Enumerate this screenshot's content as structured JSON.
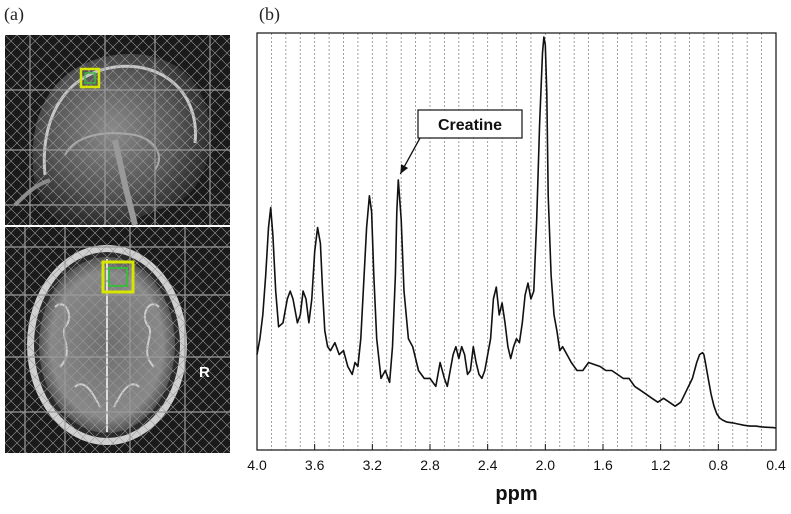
{
  "panels": {
    "a_label": "(a)",
    "b_label": "(b)"
  },
  "mri": {
    "orientation_label": "R",
    "grid_color": "#9a9a9a",
    "voxel_outer_color": "#d8e600",
    "voxel_inner_color": "#3fb83f"
  },
  "chart_data": {
    "type": "line",
    "title": "",
    "xlabel": "ppm",
    "ylabel": "",
    "xlim": [
      4.0,
      0.4
    ],
    "x_reversed": true,
    "x_ticks": [
      4.0,
      3.6,
      3.2,
      2.8,
      2.4,
      2.0,
      1.6,
      1.2,
      0.8,
      0.4
    ],
    "x_tick_labels": [
      "4.0",
      "3.6",
      "3.2",
      "2.8",
      "2.4",
      "2.0",
      "1.6",
      "1.2",
      "0.8",
      "0.4"
    ],
    "ylim": [
      0,
      1
    ],
    "grid": "vertical-dotted",
    "annotations": [
      {
        "text": "Creatine",
        "x": 3.02,
        "y": 0.64
      }
    ],
    "series": [
      {
        "color": "#111111",
        "x": [
          4.0,
          3.98,
          3.96,
          3.94,
          3.92,
          3.905,
          3.89,
          3.87,
          3.85,
          3.82,
          3.79,
          3.77,
          3.75,
          3.72,
          3.7,
          3.68,
          3.66,
          3.64,
          3.62,
          3.6,
          3.58,
          3.56,
          3.545,
          3.53,
          3.51,
          3.49,
          3.46,
          3.43,
          3.4,
          3.37,
          3.34,
          3.32,
          3.3,
          3.28,
          3.26,
          3.24,
          3.22,
          3.205,
          3.19,
          3.17,
          3.14,
          3.11,
          3.08,
          3.06,
          3.04,
          3.03,
          3.02,
          3.0,
          2.98,
          2.95,
          2.92,
          2.88,
          2.84,
          2.8,
          2.76,
          2.73,
          2.7,
          2.68,
          2.66,
          2.64,
          2.62,
          2.6,
          2.58,
          2.56,
          2.54,
          2.52,
          2.5,
          2.48,
          2.46,
          2.44,
          2.42,
          2.4,
          2.38,
          2.36,
          2.34,
          2.32,
          2.3,
          2.28,
          2.26,
          2.24,
          2.22,
          2.2,
          2.18,
          2.16,
          2.14,
          2.12,
          2.1,
          2.08,
          2.06,
          2.04,
          2.02,
          2.01,
          2.0,
          1.99,
          1.98,
          1.96,
          1.94,
          1.92,
          1.9,
          1.88,
          1.85,
          1.82,
          1.78,
          1.74,
          1.7,
          1.66,
          1.62,
          1.58,
          1.54,
          1.5,
          1.46,
          1.42,
          1.38,
          1.34,
          1.3,
          1.26,
          1.22,
          1.18,
          1.14,
          1.1,
          1.06,
          1.02,
          0.98,
          0.95,
          0.93,
          0.91,
          0.9,
          0.89,
          0.87,
          0.85,
          0.83,
          0.81,
          0.79,
          0.77,
          0.74,
          0.7,
          0.66,
          0.62,
          0.58,
          0.54,
          0.5,
          0.46,
          0.42,
          0.4
        ],
        "y": [
          0.2,
          0.24,
          0.3,
          0.4,
          0.52,
          0.57,
          0.5,
          0.36,
          0.27,
          0.28,
          0.34,
          0.36,
          0.34,
          0.28,
          0.3,
          0.36,
          0.34,
          0.28,
          0.34,
          0.46,
          0.52,
          0.48,
          0.36,
          0.26,
          0.22,
          0.21,
          0.23,
          0.2,
          0.21,
          0.17,
          0.15,
          0.18,
          0.17,
          0.24,
          0.38,
          0.52,
          0.6,
          0.56,
          0.4,
          0.24,
          0.14,
          0.16,
          0.13,
          0.22,
          0.4,
          0.56,
          0.64,
          0.54,
          0.36,
          0.24,
          0.22,
          0.16,
          0.14,
          0.14,
          0.12,
          0.18,
          0.14,
          0.12,
          0.16,
          0.2,
          0.22,
          0.19,
          0.22,
          0.2,
          0.15,
          0.16,
          0.22,
          0.18,
          0.15,
          0.14,
          0.16,
          0.2,
          0.24,
          0.34,
          0.37,
          0.3,
          0.33,
          0.28,
          0.22,
          0.19,
          0.22,
          0.24,
          0.23,
          0.28,
          0.35,
          0.38,
          0.34,
          0.36,
          0.54,
          0.78,
          0.96,
          1.0,
          0.98,
          0.86,
          0.6,
          0.4,
          0.3,
          0.26,
          0.21,
          0.22,
          0.2,
          0.18,
          0.16,
          0.16,
          0.18,
          0.175,
          0.17,
          0.16,
          0.16,
          0.15,
          0.14,
          0.14,
          0.12,
          0.11,
          0.1,
          0.09,
          0.08,
          0.09,
          0.08,
          0.07,
          0.08,
          0.11,
          0.14,
          0.18,
          0.2,
          0.205,
          0.2,
          0.18,
          0.14,
          0.1,
          0.07,
          0.05,
          0.04,
          0.035,
          0.03,
          0.028,
          0.025,
          0.022,
          0.02,
          0.02,
          0.018,
          0.017,
          0.016,
          0.015
        ]
      }
    ]
  }
}
